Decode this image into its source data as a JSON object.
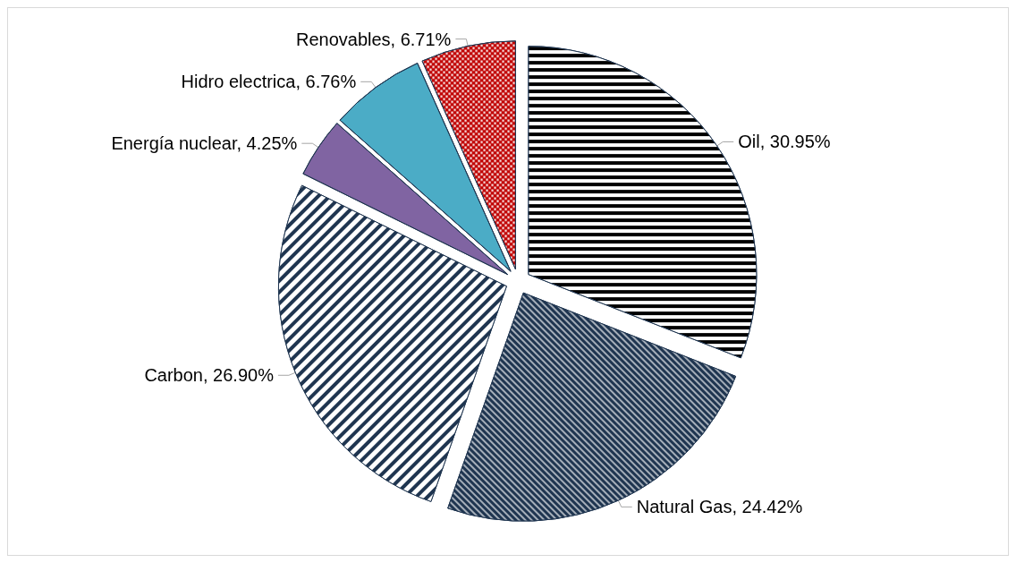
{
  "chart_data": {
    "type": "pie",
    "categories": [
      "Oil",
      "Natural Gas",
      "Carbon",
      "Energía nuclear",
      "Hidro electrica",
      "Renovables"
    ],
    "values": [
      30.95,
      24.42,
      26.9,
      4.25,
      6.76,
      6.71
    ],
    "value_labels": [
      "30.95%",
      "24.42%",
      "26.90%",
      "4.25%",
      "6.76%",
      "6.71%"
    ],
    "colors": [
      "#000000",
      "#1f3550",
      "#1f3550",
      "#8064a2",
      "#4bacc6",
      "#c00000"
    ],
    "legend": false
  }
}
